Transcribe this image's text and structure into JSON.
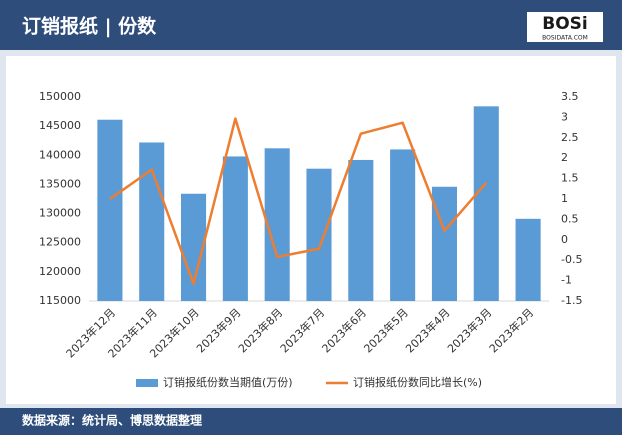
{
  "header": {
    "title": "订销报纸 | 份数",
    "logo": "BOSi",
    "logo_sub": "BOSIDATA.COM"
  },
  "chart_data": {
    "type": "bar_line",
    "categories": [
      "2023年12月",
      "2023年11月",
      "2023年10月",
      "2023年9月",
      "2023年8月",
      "2023年7月",
      "2023年6月",
      "2023年5月",
      "2023年4月",
      "2023年3月",
      "2023年2月"
    ],
    "series": [
      {
        "name": "订销报纸份数当期值(万份)",
        "type": "bar",
        "color": "#5b9bd5",
        "values": [
          146100,
          142200,
          133400,
          139800,
          141200,
          137700,
          139200,
          141000,
          134600,
          148400,
          129100
        ]
      },
      {
        "name": "订销报纸份数同比增长(%)",
        "type": "line",
        "axis": "y2",
        "color": "#ed7d31",
        "values": [
          1.0,
          1.72,
          -1.08,
          2.97,
          -0.42,
          -0.22,
          2.6,
          2.87,
          0.22,
          1.4,
          null
        ]
      }
    ],
    "ylim": [
      115000,
      150000
    ],
    "yticks": [
      115000,
      120000,
      125000,
      130000,
      135000,
      140000,
      145000,
      150000
    ],
    "y2lim": [
      -1.5,
      3.5
    ],
    "y2ticks": [
      -1.5,
      -1,
      -0.5,
      0,
      0.5,
      1,
      1.5,
      2,
      2.5,
      3,
      3.5
    ],
    "legend": "bottom"
  },
  "footer": {
    "source": "数据来源：统计局、博思数据整理"
  }
}
